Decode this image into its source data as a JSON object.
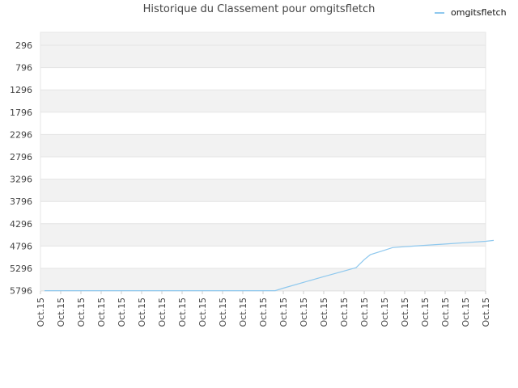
{
  "chart_data": {
    "type": "line",
    "title": "Historique du Classement pour omgitsfletch",
    "xlabel": "",
    "ylabel": "",
    "y_inverted": true,
    "ylim": [
      296,
      5796
    ],
    "y_ticks": [
      "296",
      "796",
      "1296",
      "1796",
      "2296",
      "2796",
      "3296",
      "3796",
      "4296",
      "4796",
      "5296",
      "5796"
    ],
    "x_ticks": [
      "Oct.15",
      "Oct.15",
      "Oct.15",
      "Oct.15",
      "Oct.15",
      "Oct.15",
      "Oct.15",
      "Oct.15",
      "Oct.15",
      "Oct.15",
      "Oct.15",
      "Oct.15",
      "Oct.15",
      "Oct.15",
      "Oct.15",
      "Oct.15",
      "Oct.15",
      "Oct.15",
      "Oct.15",
      "Oct.15",
      "Oct.15",
      "Oct.15",
      "Oct.15"
    ],
    "legend_position": "top-right",
    "grid": true,
    "band_colors": [
      "#f2f2f2",
      "#ffffff"
    ],
    "series": [
      {
        "name": "omgitsfletch",
        "color": "#8ec8ee",
        "x": [
          0.2,
          1,
          2,
          3,
          4,
          5,
          6,
          7,
          8,
          9,
          10,
          11,
          11.6,
          12,
          13,
          14,
          15,
          15.6,
          16,
          16.3,
          17,
          17.4,
          18,
          19,
          20,
          21,
          22,
          22.4
        ],
        "y": [
          5796,
          5796,
          5796,
          5796,
          5796,
          5796,
          5796,
          5796,
          5796,
          5796,
          5796,
          5796,
          5796,
          5740,
          5610,
          5480,
          5355,
          5280,
          5100,
          4990,
          4890,
          4830,
          4810,
          4780,
          4750,
          4720,
          4690,
          4670
        ]
      }
    ]
  }
}
